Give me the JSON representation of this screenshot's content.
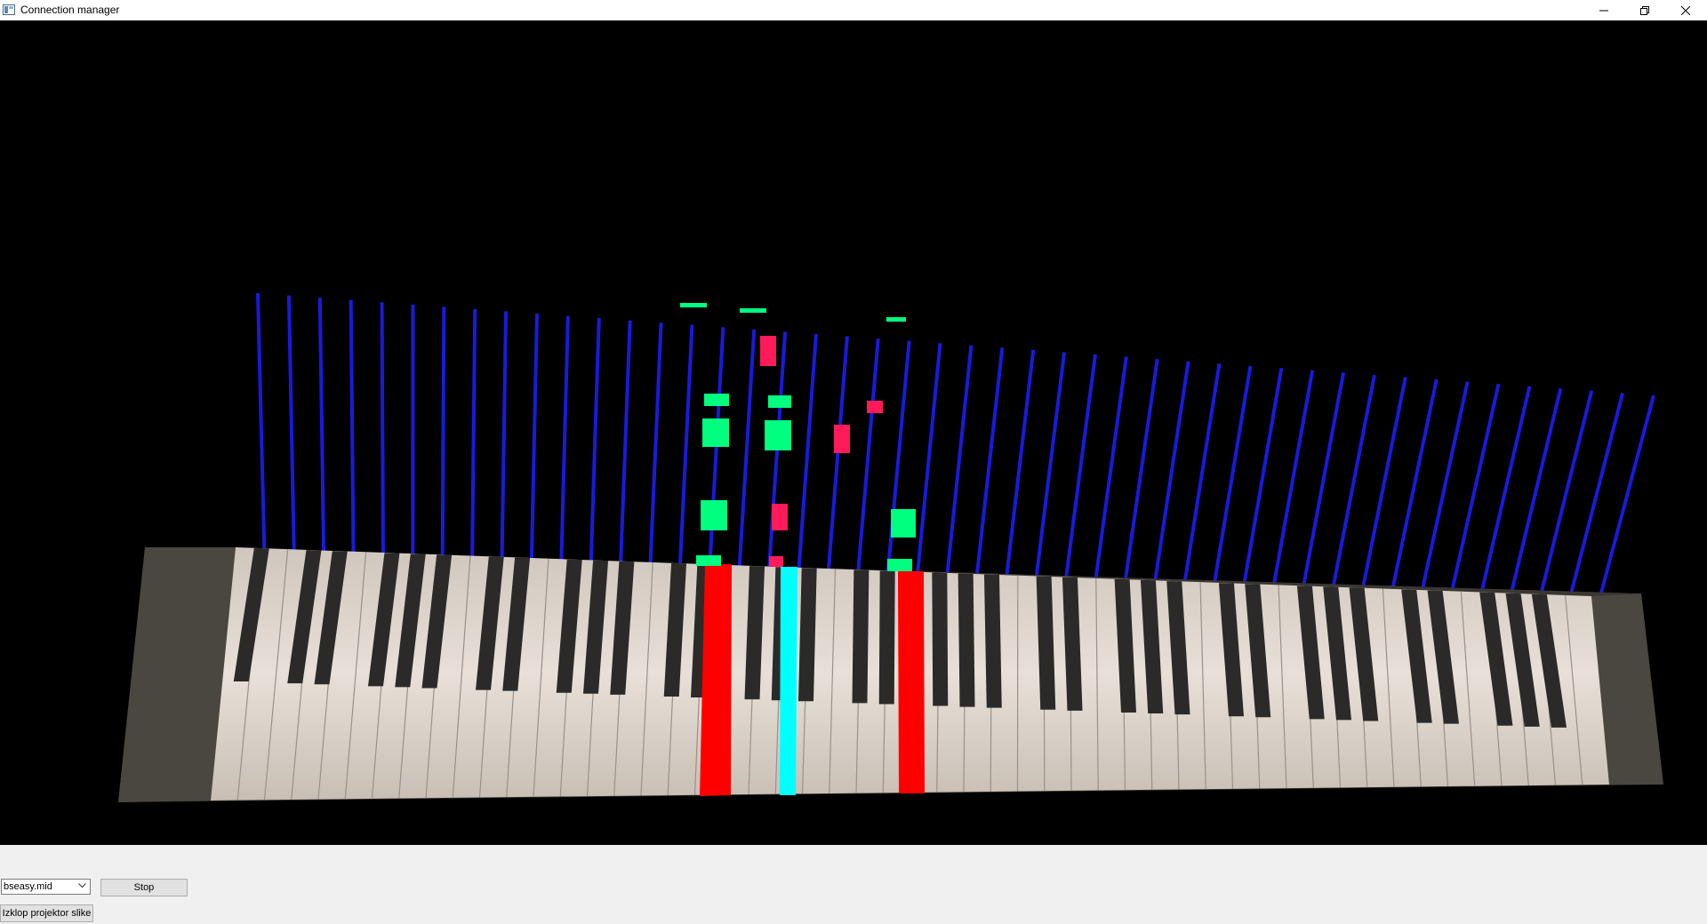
{
  "window": {
    "title": "Connection manager",
    "icons": {
      "app": "app-window-icon",
      "minimize": "minimize-icon",
      "maximize": "restore-icon",
      "close": "close-icon"
    }
  },
  "viewport": {
    "background": "#000000",
    "keyboard_image": "photo of a piano keyboard (perspective view)",
    "colors": {
      "guide_line": "#1a1adc",
      "note_green": "#00ff7f",
      "note_pink": "#ff1a5a",
      "key_red": "#ff0000",
      "key_cyan": "#00ffff"
    }
  },
  "controls": {
    "file_select": {
      "value": "bseasy.mid"
    },
    "stop_label": "Stop",
    "projector_toggle_label": "Izklop projektor slike"
  }
}
